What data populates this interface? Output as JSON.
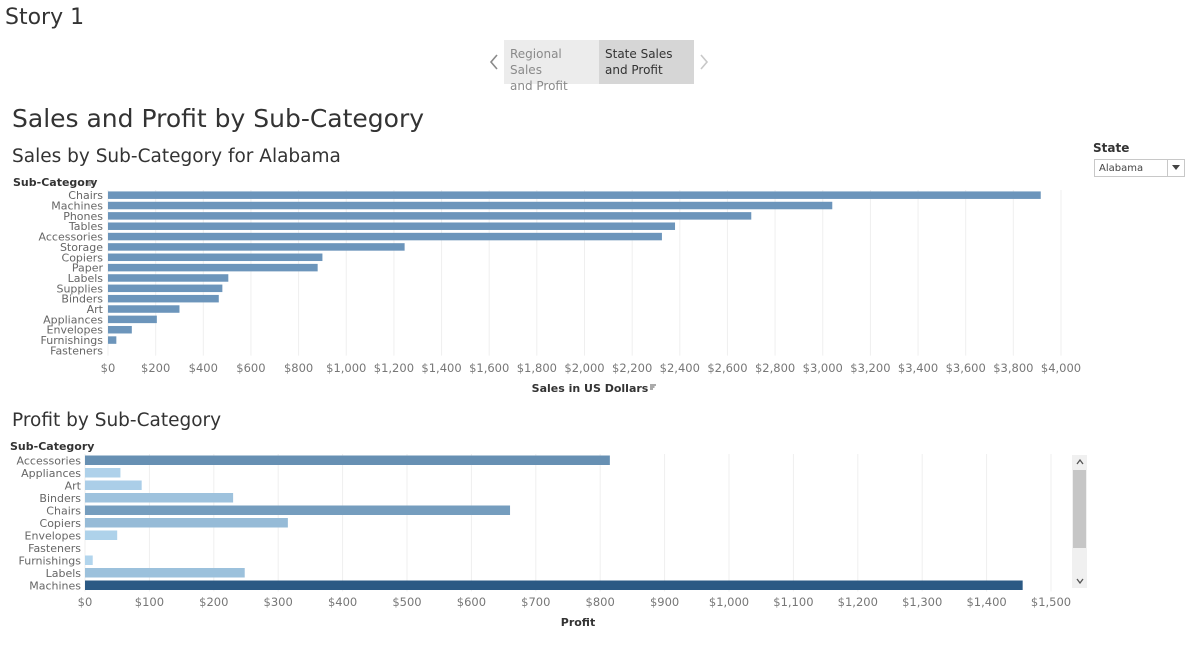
{
  "story": {
    "title": "Story 1",
    "points": [
      {
        "label": "Regional Sales and Profit",
        "active": false
      },
      {
        "label": "State Sales and Profit",
        "active": true
      }
    ]
  },
  "dashboard": {
    "title": "Sales and Profit by Sub-Category"
  },
  "filter": {
    "label": "State",
    "value": "Alabama"
  },
  "icons": {
    "prev": "chevron-left-icon",
    "next": "chevron-right-icon",
    "sort": "sort-icon",
    "dropdown": "chevron-down-icon"
  },
  "colors": {
    "bar_sales": "#6c95bb",
    "profit_light": "#b3d6ee",
    "profit_dark": "#2b5984"
  },
  "chart_data": [
    {
      "type": "bar",
      "orientation": "horizontal",
      "title": "Sales by Sub-Category for Alabama",
      "ylabel": "Sub-Category",
      "xlabel": "Sales in US Dollars",
      "categories": [
        "Chairs",
        "Machines",
        "Phones",
        "Tables",
        "Accessories",
        "Storage",
        "Copiers",
        "Paper",
        "Labels",
        "Supplies",
        "Binders",
        "Art",
        "Appliances",
        "Envelopes",
        "Furnishings",
        "Fasteners"
      ],
      "values": [
        3915,
        3040,
        2700,
        2380,
        2325,
        1245,
        900,
        880,
        505,
        480,
        465,
        300,
        205,
        100,
        35,
        0
      ],
      "xlim": [
        0,
        4000
      ],
      "ticks": [
        0,
        200,
        400,
        600,
        800,
        1000,
        1200,
        1400,
        1600,
        1800,
        2000,
        2200,
        2400,
        2600,
        2800,
        3000,
        3200,
        3400,
        3600,
        3800,
        4000
      ],
      "tick_labels": [
        "$0",
        "$200",
        "$400",
        "$600",
        "$800",
        "$1,000",
        "$1,200",
        "$1,400",
        "$1,600",
        "$1,800",
        "$2,000",
        "$2,200",
        "$2,400",
        "$2,600",
        "$2,800",
        "$3,000",
        "$3,200",
        "$3,400",
        "$3,600",
        "$3,800",
        "$4,000"
      ],
      "grid": true
    },
    {
      "type": "bar",
      "orientation": "horizontal",
      "title": "Profit by Sub-Category",
      "ylabel": "Sub-Category",
      "xlabel": "Profit",
      "categories": [
        "Accessories",
        "Appliances",
        "Art",
        "Binders",
        "Chairs",
        "Copiers",
        "Envelopes",
        "Fasteners",
        "Furnishings",
        "Labels",
        "Machines"
      ],
      "values": [
        815,
        55,
        88,
        230,
        660,
        315,
        50,
        0,
        12,
        248,
        1456
      ],
      "xlim": [
        0,
        1500
      ],
      "ticks": [
        0,
        100,
        200,
        300,
        400,
        500,
        600,
        700,
        800,
        900,
        1000,
        1100,
        1200,
        1300,
        1400,
        1500
      ],
      "tick_labels": [
        "$0",
        "$100",
        "$200",
        "$300",
        "$400",
        "$500",
        "$600",
        "$700",
        "$800",
        "$900",
        "$1,000",
        "$1,100",
        "$1,200",
        "$1,300",
        "$1,400",
        "$1,500"
      ],
      "grid": true
    }
  ]
}
